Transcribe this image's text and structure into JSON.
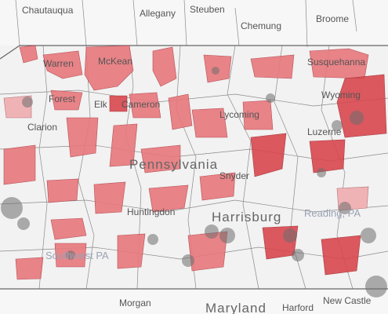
{
  "labels": {
    "ny": [
      "Chautauqua",
      "Allegany",
      "Steuben",
      "Chemung",
      "Broome"
    ],
    "pa": [
      "Susquehanna",
      "Warren",
      "McKean",
      "Forest",
      "Elk",
      "Cameron",
      "Clarion",
      "Lycoming",
      "Wyoming",
      "Luzerne",
      "Snyder",
      "Huntingdon"
    ],
    "region": "Pennsylvania",
    "city": "Harrisburg",
    "reading": "Reading, PA",
    "southwest": "Southwest PA",
    "md": [
      "Morgan",
      "Maryland",
      "Harford",
      "New Castle"
    ]
  }
}
